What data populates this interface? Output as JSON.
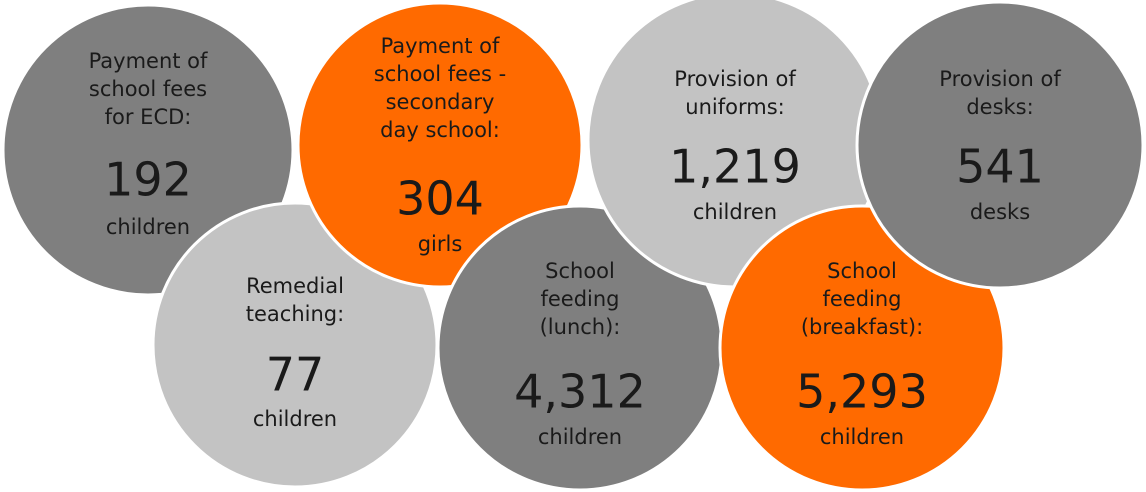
{
  "nodes": [
    {
      "label_lines": [
        "Payment of",
        "school fees",
        "for ECD:"
      ],
      "number": "192",
      "unit": "children"
    },
    {
      "label_lines": [
        "Remedial",
        "teaching:"
      ],
      "number": "77",
      "unit": "children"
    },
    {
      "label_lines": [
        "Payment of",
        "school fees -",
        "secondary",
        "day school:"
      ],
      "number": "304",
      "unit": "girls"
    },
    {
      "label_lines": [
        "School",
        "feeding",
        "(lunch):"
      ],
      "number": "4,312",
      "unit": "children"
    },
    {
      "label_lines": [
        "Provision of",
        "uniforms:"
      ],
      "number": "1,219",
      "unit": "children"
    },
    {
      "label_lines": [
        "School",
        "feeding",
        "(breakfast):"
      ],
      "number": "5,293",
      "unit": "children"
    },
    {
      "label_lines": [
        "Provision of",
        "desks:"
      ],
      "number": "541",
      "unit": "desks"
    }
  ]
}
